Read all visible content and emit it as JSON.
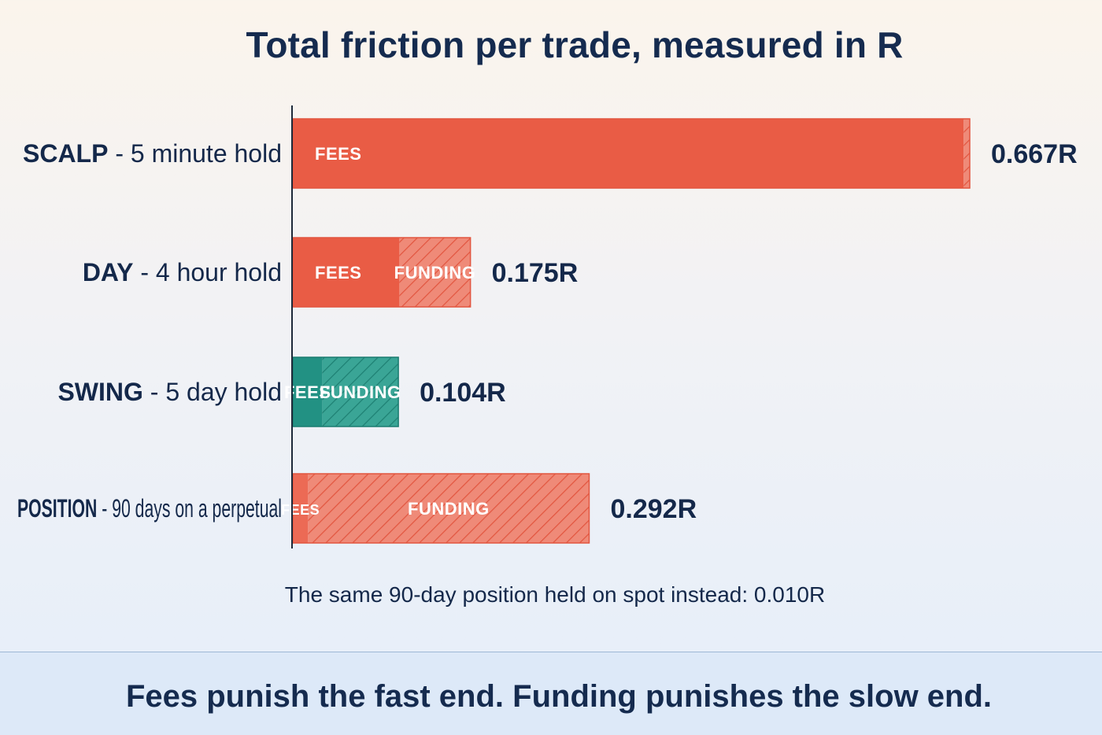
{
  "chart_data": {
    "type": "bar",
    "orientation": "horizontal",
    "stacked": true,
    "title": "Total friction per trade, measured in R",
    "categories": [
      {
        "label_strong": "SCALP",
        "label_rest": " - 5 minute hold"
      },
      {
        "label_strong": "DAY",
        "label_rest": " - 4 hour hold"
      },
      {
        "label_strong": "SWING",
        "label_rest": " - 5 day hold"
      },
      {
        "label_strong": "POSITION",
        "label_rest": " - 90 days on a perpetual"
      }
    ],
    "series": [
      {
        "name": "FEES",
        "values": [
          0.661,
          0.105,
          0.029,
          0.015
        ]
      },
      {
        "name": "FUNDING",
        "values": [
          0.006,
          0.07,
          0.075,
          0.277
        ]
      }
    ],
    "segment_labels": [
      [
        "FEES",
        ""
      ],
      [
        "FEES",
        "FUNDING"
      ],
      [
        "FEES",
        "FUNDING"
      ],
      [
        "FEES",
        "FUNDING"
      ]
    ],
    "totals": [
      "0.667R",
      "0.175R",
      "0.104R",
      "0.292R"
    ],
    "total_values": [
      0.667,
      0.175,
      0.104,
      0.292
    ],
    "bar_colors": [
      "#e95c45",
      "#e95c45",
      "#229183",
      "#ec6a55"
    ],
    "xlim": [
      0,
      0.667
    ],
    "xlabel": "",
    "ylabel": "",
    "grid": false,
    "annotation": "The same 90-day position held on spot instead: 0.010R"
  },
  "footer": {
    "text": "Fees punish the fast end. Funding punishes the slow end."
  }
}
